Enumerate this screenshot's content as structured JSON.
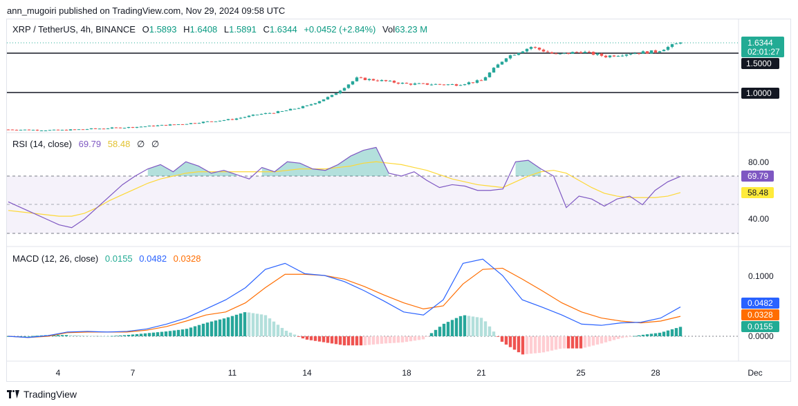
{
  "attribution": "ann_mugoiri published on TradingView.com, Nov 29, 2024 09:58 UTC",
  "footer_brand": "TradingView",
  "symbol_bar": {
    "symbol": "XRP / TetherUS, 4h, BINANCE",
    "o_label": "O",
    "o": "1.5893",
    "h_label": "H",
    "h": "1.6408",
    "l_label": "L",
    "l": "1.5891",
    "c_label": "C",
    "c": "1.6344",
    "change": "+0.0452 (+2.84%)",
    "vol_label": "Vol",
    "vol": "63.23 M"
  },
  "price_labels": {
    "last": "1.6344",
    "countdown": "02:01:27",
    "level_1": "1.5000",
    "level_2": "1.0000"
  },
  "rsi_legend": {
    "label": "RSI (14, close)",
    "rsi": "69.79",
    "ma": "58.48",
    "extra1": "∅",
    "extra2": "∅"
  },
  "rsi_axis": {
    "tick_high": "80.00",
    "tick_low": "40.00",
    "rsi_badge": "69.79",
    "ma_badge": "58.48"
  },
  "macd_legend": {
    "label": "MACD (12, 26, close)",
    "hist": "0.0155",
    "macd": "0.0482",
    "signal": "0.0328"
  },
  "macd_axis": {
    "tick_1": "0.1000",
    "tick_0": "0.0000",
    "macd_badge": "0.0482",
    "signal_badge": "0.0328",
    "hist_badge": "0.0155"
  },
  "time_axis": [
    "4",
    "7",
    "11",
    "14",
    "18",
    "21",
    "25",
    "28",
    "Dec"
  ],
  "colors": {
    "up": "#26a69a",
    "down": "#ef5350",
    "up_light": "#b2dfdb",
    "down_light": "#ffcdd2",
    "rsi": "#7e57c2",
    "rsi_ma": "#fdd835",
    "macd": "#2962ff",
    "signal": "#ff6d00",
    "label_dark": "#131722",
    "last_price": "#22ab94"
  },
  "chart_data": [
    {
      "type": "candlestick",
      "title": "XRP / TetherUS, 4h, BINANCE",
      "x_ticks": [
        "4",
        "7",
        "11",
        "14",
        "18",
        "21",
        "25",
        "28",
        "Dec"
      ],
      "horizontal_levels": [
        1.5,
        1.0
      ],
      "last_price": 1.6344,
      "ohlc_last": {
        "open": 1.5893,
        "high": 1.6408,
        "low": 1.5891,
        "close": 1.6344
      },
      "close_path_approx": [
        {
          "x": "Nov 2",
          "close": 0.53
        },
        {
          "x": "Nov 4",
          "close": 0.52
        },
        {
          "x": "Nov 7",
          "close": 0.56
        },
        {
          "x": "Nov 9",
          "close": 0.6
        },
        {
          "x": "Nov 11",
          "close": 0.66
        },
        {
          "x": "Nov 12",
          "close": 0.72
        },
        {
          "x": "Nov 13",
          "close": 0.76
        },
        {
          "x": "Nov 14",
          "close": 0.83
        },
        {
          "x": "Nov 15",
          "close": 0.96
        },
        {
          "x": "Nov 16",
          "close": 1.18
        },
        {
          "x": "Nov 17",
          "close": 1.15
        },
        {
          "x": "Nov 18",
          "close": 1.11
        },
        {
          "x": "Nov 20",
          "close": 1.1
        },
        {
          "x": "Nov 21",
          "close": 1.15
        },
        {
          "x": "Nov 22",
          "close": 1.45
        },
        {
          "x": "Nov 23",
          "close": 1.58
        },
        {
          "x": "Nov 24",
          "close": 1.48
        },
        {
          "x": "Nov 25",
          "close": 1.52
        },
        {
          "x": "Nov 26",
          "close": 1.46
        },
        {
          "x": "Nov 27",
          "close": 1.5
        },
        {
          "x": "Nov 28",
          "close": 1.52
        },
        {
          "x": "Nov 29",
          "close": 1.6344
        }
      ]
    },
    {
      "type": "line",
      "title": "RSI (14, close)",
      "y_ticks": [
        80,
        40
      ],
      "band": [
        70,
        30
      ],
      "series": [
        {
          "name": "RSI",
          "values": [
            52,
            48,
            44,
            40,
            36,
            34,
            40,
            48,
            56,
            64,
            70,
            75,
            78,
            73,
            80,
            77,
            72,
            74,
            71,
            68,
            76,
            73,
            80,
            79,
            75,
            74,
            78,
            84,
            88,
            90,
            72,
            70,
            73,
            67,
            62,
            64,
            63,
            60,
            60,
            61,
            80,
            81,
            75,
            70,
            48,
            56,
            54,
            49,
            54,
            56,
            50,
            60,
            66,
            69.79
          ]
        },
        {
          "name": "MA",
          "values": [
            46,
            45,
            44,
            43,
            42,
            42,
            44,
            48,
            53,
            57,
            61,
            65,
            68,
            70,
            72,
            73,
            73,
            73,
            73,
            73,
            73,
            73,
            74,
            75,
            75,
            75,
            76,
            77,
            79,
            80,
            79,
            78,
            76,
            74,
            71,
            68,
            66,
            64,
            63,
            62,
            66,
            70,
            73,
            74,
            72,
            67,
            62,
            58,
            56,
            55,
            55,
            55,
            56,
            58.48
          ]
        }
      ]
    },
    {
      "type": "bar",
      "title": "MACD (12, 26, close)",
      "y_ticks": [
        0.1,
        0.0
      ],
      "series": [
        {
          "name": "MACD",
          "values": [
            0.0,
            -0.002,
            0.001,
            0.007,
            0.008,
            0.007,
            0.008,
            0.012,
            0.02,
            0.03,
            0.045,
            0.06,
            0.08,
            0.11,
            0.12,
            0.103,
            0.1,
            0.09,
            0.075,
            0.058,
            0.04,
            0.035,
            0.06,
            0.12,
            0.127,
            0.1,
            0.06,
            0.048,
            0.035,
            0.02,
            0.018,
            0.022,
            0.023,
            0.03,
            0.0482
          ]
        },
        {
          "name": "Signal",
          "values": [
            0.0,
            -0.002,
            0.0,
            0.006,
            0.007,
            0.007,
            0.007,
            0.01,
            0.016,
            0.025,
            0.035,
            0.04,
            0.055,
            0.08,
            0.102,
            0.102,
            0.1,
            0.094,
            0.082,
            0.068,
            0.055,
            0.045,
            0.05,
            0.086,
            0.11,
            0.112,
            0.094,
            0.075,
            0.055,
            0.04,
            0.03,
            0.025,
            0.022,
            0.025,
            0.0328
          ]
        },
        {
          "name": "Histogram",
          "values": [
            0.0,
            0.0,
            0.002,
            0.002,
            0.001,
            0.0,
            0.002,
            0.005,
            0.008,
            0.012,
            0.022,
            0.03,
            0.04,
            0.035,
            0.01,
            -0.005,
            -0.01,
            -0.015,
            -0.015,
            -0.012,
            -0.01,
            -0.005,
            0.02,
            0.035,
            0.03,
            -0.01,
            -0.03,
            -0.027,
            -0.02,
            -0.02,
            -0.012,
            -0.003,
            0.002,
            0.006,
            0.0155
          ]
        }
      ]
    }
  ]
}
